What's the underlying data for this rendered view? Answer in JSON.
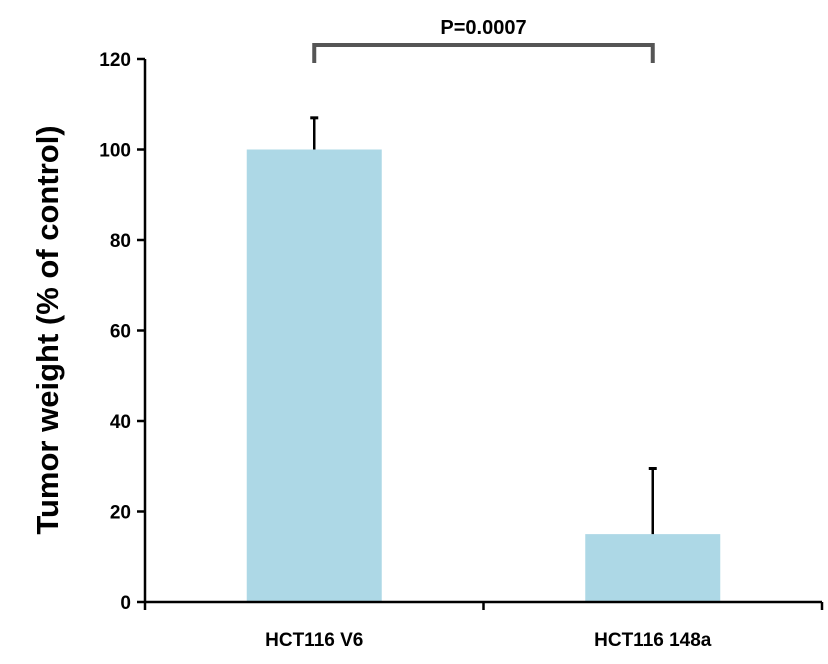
{
  "chart_data": {
    "type": "bar",
    "categories": [
      "HCT116 V6",
      "HCT116 148a"
    ],
    "values": [
      100,
      15
    ],
    "error": [
      7,
      14.5
    ],
    "ylabel": "Tumor weight (% of control)",
    "xlabel": "",
    "ylim": [
      0,
      120
    ],
    "yticks": [
      0,
      20,
      40,
      60,
      80,
      100,
      120
    ],
    "grid": false,
    "bar_color": "#add8e6",
    "annotation": {
      "text": "P=0.0007",
      "between": [
        "HCT116 V6",
        "HCT116 148a"
      ]
    }
  }
}
